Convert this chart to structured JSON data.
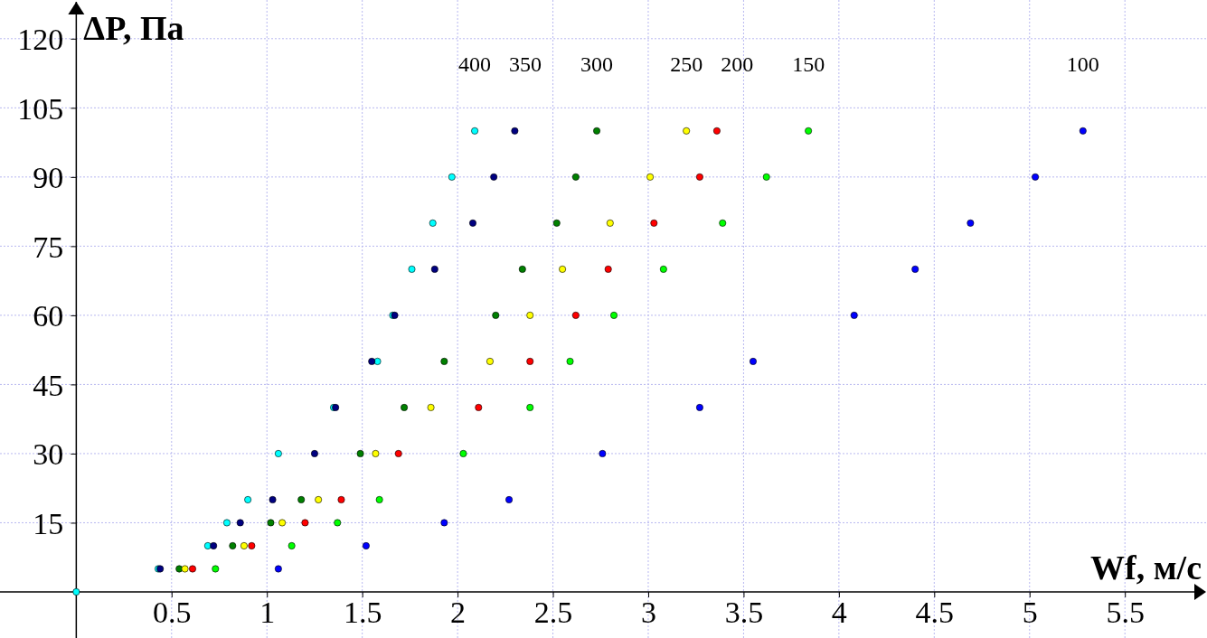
{
  "chart_data": {
    "type": "scatter",
    "xlabel": "Wf, м/с",
    "ylabel": "ΔP, Па",
    "xlim": [
      -0.4,
      5.85
    ],
    "ylim": [
      -10,
      128
    ],
    "xticks": [
      0.5,
      1,
      1.5,
      2,
      2.5,
      3,
      3.5,
      4,
      4.5,
      5,
      5.5
    ],
    "yticks": [
      15,
      30,
      45,
      60,
      75,
      90,
      105,
      120
    ],
    "grid": true,
    "marker": "circle",
    "series": [
      {
        "name": "400",
        "color": "#00ffff",
        "x": [
          0,
          0.43,
          0.69,
          0.79,
          0.9,
          1.06,
          1.35,
          1.58,
          1.66,
          1.76,
          1.87,
          1.97,
          2.09
        ],
        "values": [
          0,
          5,
          10,
          15,
          20,
          30,
          40,
          50,
          60,
          70,
          80,
          90,
          100
        ]
      },
      {
        "name": "350",
        "color": "#000080",
        "x": [
          0.44,
          0.72,
          0.86,
          1.03,
          1.25,
          1.36,
          1.55,
          1.67,
          1.88,
          2.08,
          2.19,
          2.3
        ],
        "values": [
          5,
          10,
          15,
          20,
          30,
          40,
          50,
          60,
          70,
          80,
          90,
          100
        ]
      },
      {
        "name": "300",
        "color": "#008000",
        "x": [
          0.54,
          0.82,
          1.02,
          1.18,
          1.49,
          1.72,
          1.93,
          2.2,
          2.34,
          2.52,
          2.62,
          2.73
        ],
        "values": [
          5,
          10,
          15,
          20,
          30,
          40,
          50,
          60,
          70,
          80,
          90,
          100
        ]
      },
      {
        "name": "250",
        "color": "#ffff00",
        "x": [
          0.57,
          0.88,
          1.08,
          1.27,
          1.57,
          1.86,
          2.17,
          2.38,
          2.55,
          2.8,
          3.01,
          3.2
        ],
        "values": [
          5,
          10,
          15,
          20,
          30,
          40,
          50,
          60,
          70,
          80,
          90,
          100
        ]
      },
      {
        "name": "200",
        "color": "#ff0000",
        "x": [
          0.61,
          0.92,
          1.2,
          1.39,
          1.69,
          2.11,
          2.38,
          2.62,
          2.79,
          3.03,
          3.27,
          3.36
        ],
        "values": [
          5,
          10,
          15,
          20,
          30,
          40,
          50,
          60,
          70,
          80,
          90,
          100
        ]
      },
      {
        "name": "150",
        "color": "#00ff00",
        "x": [
          0.73,
          1.13,
          1.37,
          1.59,
          2.03,
          2.38,
          2.59,
          2.82,
          3.08,
          3.39,
          3.62,
          3.84
        ],
        "values": [
          5,
          10,
          15,
          20,
          30,
          40,
          50,
          60,
          70,
          80,
          90,
          100
        ]
      },
      {
        "name": "100",
        "color": "#0000ff",
        "x": [
          1.06,
          1.52,
          1.93,
          2.27,
          2.76,
          3.27,
          3.55,
          4.08,
          4.4,
          4.69,
          5.03,
          5.28
        ],
        "values": [
          5,
          10,
          15,
          20,
          30,
          40,
          50,
          60,
          70,
          80,
          90,
          100
        ]
      }
    ]
  }
}
